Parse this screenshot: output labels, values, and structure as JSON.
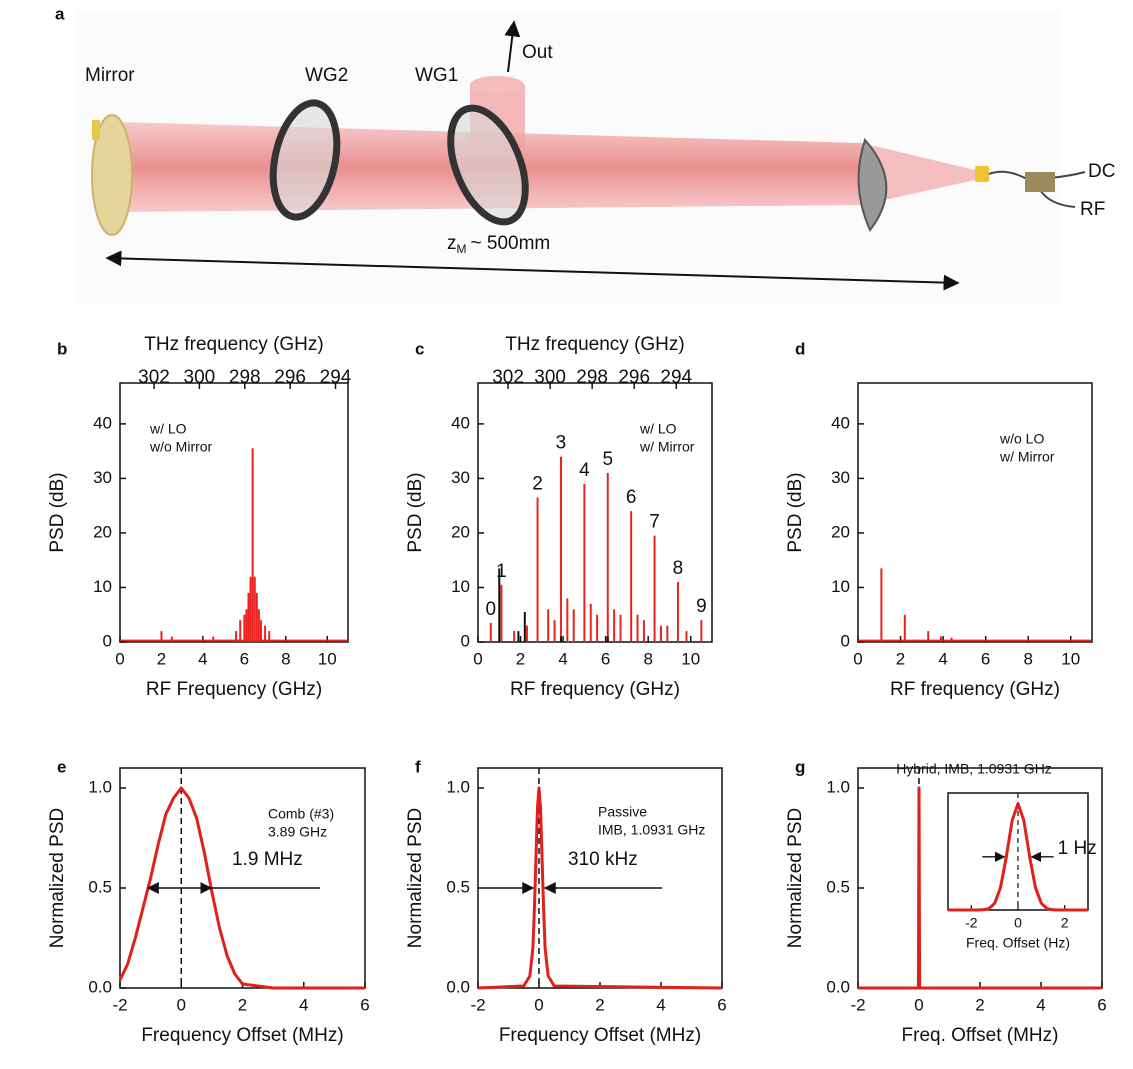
{
  "diagram": {
    "label": "a",
    "mirror": "Mirror",
    "wg2": "WG2",
    "wg1": "WG1",
    "out": "Out",
    "dc": "DC",
    "rf": "RF",
    "distance": {
      "symbol": "z",
      "subscript": "M",
      "text": "~ 500mm"
    }
  },
  "chart_data": [
    {
      "type": "stem",
      "panel": "b",
      "x2label": "THz frequency (GHz)",
      "x2lim": [
        303.5,
        293.45
      ],
      "x2ticks": [
        302,
        300,
        298,
        296,
        294
      ],
      "xlabel": "RF Frequency (GHz)",
      "ylabel": "PSD (dB)",
      "xlim": [
        0,
        11
      ],
      "ylim": [
        0,
        47.5
      ],
      "xticks": [
        0,
        2,
        4,
        6,
        8,
        10
      ],
      "yticks": [
        0,
        10,
        20,
        30,
        40
      ],
      "annotations": [
        "w/ LO",
        "w/o Mirror"
      ],
      "series": [
        {
          "style": "line",
          "color": "#e8231f",
          "x": [
            0,
            11
          ],
          "values": [
            0.3,
            0.3
          ]
        },
        {
          "color": "#e8231f",
          "x": [
            2.0,
            2.5,
            4.5,
            5.6,
            5.8,
            6.0,
            6.1,
            6.2,
            6.3,
            6.4,
            6.5,
            6.6,
            6.7,
            6.8,
            7.0,
            7.2
          ],
          "values": [
            2,
            1,
            1,
            2,
            4,
            5,
            6,
            9,
            12,
            35.5,
            12,
            9,
            6,
            4,
            3,
            2
          ]
        }
      ]
    },
    {
      "type": "stem",
      "panel": "c",
      "x2label": "THz frequency (GHz)",
      "x2lim": [
        303.43,
        292.3
      ],
      "x2ticks": [
        302,
        300,
        298,
        296,
        294
      ],
      "xlabel": "RF frequency (GHz)",
      "ylabel": "PSD (dB)",
      "xlim": [
        0,
        11
      ],
      "ylim": [
        0,
        47.5
      ],
      "xticks": [
        0,
        2,
        4,
        6,
        8,
        10
      ],
      "yticks": [
        0,
        10,
        20,
        30,
        40
      ],
      "annotations": [
        "w/ LO",
        "w/ Mirror"
      ],
      "series": [
        {
          "color": "#e8231f",
          "x": [
            0.6,
            1.1,
            2.8,
            3.9,
            5.0,
            6.1,
            7.2,
            8.3,
            9.4,
            10.5
          ],
          "values": [
            3.5,
            10.5,
            26.5,
            34,
            29,
            31,
            24,
            19.5,
            11,
            4
          ],
          "labels": [
            "0",
            "1",
            "2",
            "3",
            "4",
            "5",
            "6",
            "7",
            "8",
            "9"
          ]
        },
        {
          "color": "#e8231f",
          "x": [
            1.7,
            2.3,
            3.3,
            3.6,
            4.2,
            4.5,
            5.3,
            5.6,
            6.4,
            6.7,
            7.5,
            7.8,
            8.6,
            8.9,
            9.8
          ],
          "values": [
            2,
            3,
            6,
            4,
            8,
            6,
            7,
            5,
            6,
            5,
            5,
            4,
            3,
            3,
            2
          ]
        },
        {
          "color": "#111111",
          "x": [
            1.0,
            1.9,
            2.2,
            3.9,
            6.1
          ],
          "values": [
            13.5,
            2,
            5.5,
            1,
            1
          ]
        }
      ]
    },
    {
      "type": "stem",
      "panel": "d",
      "xlabel": "RF frequency (GHz)",
      "ylabel": "PSD (dB)",
      "xlim": [
        0,
        11
      ],
      "ylim": [
        0,
        47.5
      ],
      "xticks": [
        0,
        2,
        4,
        6,
        8,
        10
      ],
      "yticks": [
        0,
        10,
        20,
        30,
        40
      ],
      "annotations": [
        "w/o LO",
        "w/ Mirror"
      ],
      "series": [
        {
          "style": "line",
          "color": "#e8231f",
          "x": [
            0,
            11
          ],
          "values": [
            0.3,
            0.3
          ]
        },
        {
          "color": "#e8231f",
          "x": [
            1.1,
            2.2,
            3.3,
            3.9,
            4.4
          ],
          "values": [
            13.5,
            5,
            2,
            1,
            0.8
          ]
        }
      ]
    },
    {
      "type": "line",
      "panel": "e",
      "xlabel": "Frequency Offset (MHz)",
      "ylabel": "Normalized PSD",
      "xlim": [
        -2,
        6
      ],
      "ylim": [
        0,
        1.1
      ],
      "xticks": [
        -2,
        0,
        2,
        4,
        6
      ],
      "yticks": [
        {
          "value": 0,
          "label": "0.0"
        },
        {
          "value": 0.5,
          "label": "0.5"
        },
        {
          "value": 1,
          "label": "1.0"
        }
      ],
      "vline": 0,
      "annotations": [
        "Comb (#3)",
        "3.89 GHz"
      ],
      "width_label": "1.9 MHz",
      "series": [
        {
          "color": "#e0201b",
          "x": [
            -2,
            -1.75,
            -1.5,
            -1.25,
            -1,
            -0.75,
            -0.5,
            -0.25,
            0,
            0.25,
            0.5,
            0.75,
            1,
            1.25,
            1.5,
            1.75,
            2,
            2.5,
            3,
            4,
            5,
            6
          ],
          "values": [
            0.04,
            0.12,
            0.25,
            0.4,
            0.55,
            0.72,
            0.87,
            0.95,
            1.0,
            0.95,
            0.85,
            0.68,
            0.48,
            0.3,
            0.16,
            0.07,
            0.02,
            0.01,
            0,
            0,
            0,
            0
          ]
        }
      ]
    },
    {
      "type": "line",
      "panel": "f",
      "xlabel": "Frequency Offset (MHz)",
      "ylabel": "Normalized PSD",
      "xlim": [
        -2,
        6
      ],
      "ylim": [
        0,
        1.1
      ],
      "xticks": [
        -2,
        0,
        2,
        4,
        6
      ],
      "yticks": [
        {
          "value": 0,
          "label": "0.0"
        },
        {
          "value": 0.5,
          "label": "0.5"
        },
        {
          "value": 1,
          "label": "1.0"
        }
      ],
      "vline": 0,
      "annotations": [
        "Passive",
        "IMB, 1.0931 GHz"
      ],
      "width_label": "310 kHz",
      "series": [
        {
          "color": "#e0201b",
          "x": [
            -2,
            -0.5,
            -0.3,
            -0.2,
            -0.15,
            -0.1,
            -0.05,
            0,
            0.05,
            0.1,
            0.15,
            0.2,
            0.3,
            0.5,
            6
          ],
          "values": [
            0,
            0.01,
            0.06,
            0.2,
            0.4,
            0.65,
            0.9,
            1,
            0.9,
            0.65,
            0.4,
            0.2,
            0.06,
            0.01,
            0
          ]
        }
      ]
    },
    {
      "type": "line",
      "panel": "g",
      "xlabel": "Freq. Offset (MHz)",
      "ylabel": "Normalized PSD",
      "xlim": [
        -2,
        6
      ],
      "ylim": [
        0,
        1.1
      ],
      "xticks": [
        -2,
        0,
        2,
        4,
        6
      ],
      "yticks": [
        {
          "value": 0,
          "label": "0.0"
        },
        {
          "value": 0.5,
          "label": "0.5"
        },
        {
          "value": 1,
          "label": "1.0"
        }
      ],
      "vline": 0,
      "annotations": [
        "Hybrid, IMB, 1.0931 GHz"
      ],
      "series": [
        {
          "color": "#e0201b",
          "x": [
            -2,
            -0.02,
            0,
            0.02,
            6
          ],
          "values": [
            0,
            0,
            1,
            0,
            0
          ]
        }
      ],
      "inset": {
        "xlabel": "Freq. Offset (Hz)",
        "xlim": [
          -3,
          3
        ],
        "ylim": [
          0,
          1.1
        ],
        "xticks": [
          -2,
          0,
          2
        ],
        "vline": 0,
        "width_label": "1 Hz",
        "series": [
          {
            "color": "#e0201b",
            "x": [
              -3,
              -2.75,
              -2.5,
              -2.25,
              -2,
              -1.75,
              -1.5,
              -1.25,
              -1,
              -0.75,
              -0.5,
              -0.25,
              0,
              0.25,
              0.5,
              0.75,
              1,
              1.25,
              1.5,
              1.75,
              2,
              2.25,
              2.5,
              2.75,
              3
            ],
            "values": [
              0,
              0,
              0,
              0,
              0,
              0,
              0.002,
              0.013,
              0.063,
              0.21,
              0.5,
              0.841,
              1,
              0.841,
              0.5,
              0.21,
              0.063,
              0.013,
              0.002,
              0,
              0,
              0,
              0,
              0,
              0
            ]
          }
        ]
      }
    }
  ]
}
